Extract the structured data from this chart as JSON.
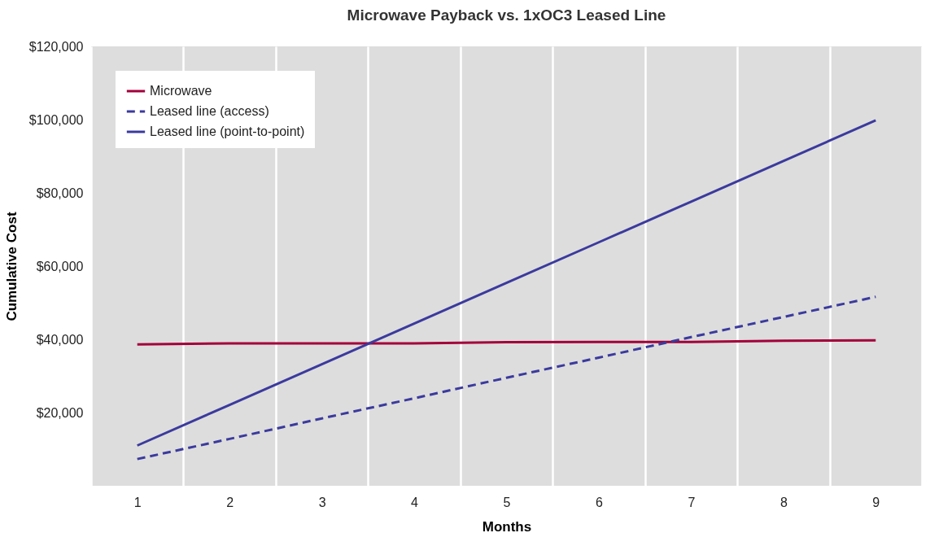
{
  "chart_data": {
    "type": "line",
    "title": "Microwave Payback vs. 1xOC3 Leased Line",
    "xlabel": "Months",
    "ylabel": "Cumulative Cost",
    "categories": [
      "1",
      "2",
      "3",
      "4",
      "5",
      "6",
      "7",
      "8",
      "9"
    ],
    "series": [
      {
        "name": "Microwave",
        "color": "#a3003a",
        "line_style": "solid",
        "values": [
          38600,
          38900,
          38900,
          38900,
          39200,
          39300,
          39300,
          39600,
          39700
        ]
      },
      {
        "name": "Leased line (access)",
        "color": "#3b3a9e",
        "line_style": "dashed",
        "values": [
          7300,
          12800,
          18400,
          23900,
          29500,
          35000,
          40600,
          46100,
          51600
        ]
      },
      {
        "name": "Leased line (point-to-point)",
        "color": "#3b3a9e",
        "line_style": "solid",
        "values": [
          11000,
          22100,
          33200,
          44300,
          55400,
          66500,
          77600,
          88700,
          99800
        ]
      }
    ],
    "ylim": [
      0,
      120000
    ],
    "yticks": [
      {
        "value": 20000,
        "label": "$20,000"
      },
      {
        "value": 40000,
        "label": "$40,000"
      },
      {
        "value": 60000,
        "label": "$60,000"
      },
      {
        "value": 80000,
        "label": "$80,000"
      },
      {
        "value": 100000,
        "label": "$100,000"
      },
      {
        "value": 120000,
        "label": "$120,000"
      }
    ],
    "grid": "x",
    "legend": "top left",
    "marker": "none"
  }
}
